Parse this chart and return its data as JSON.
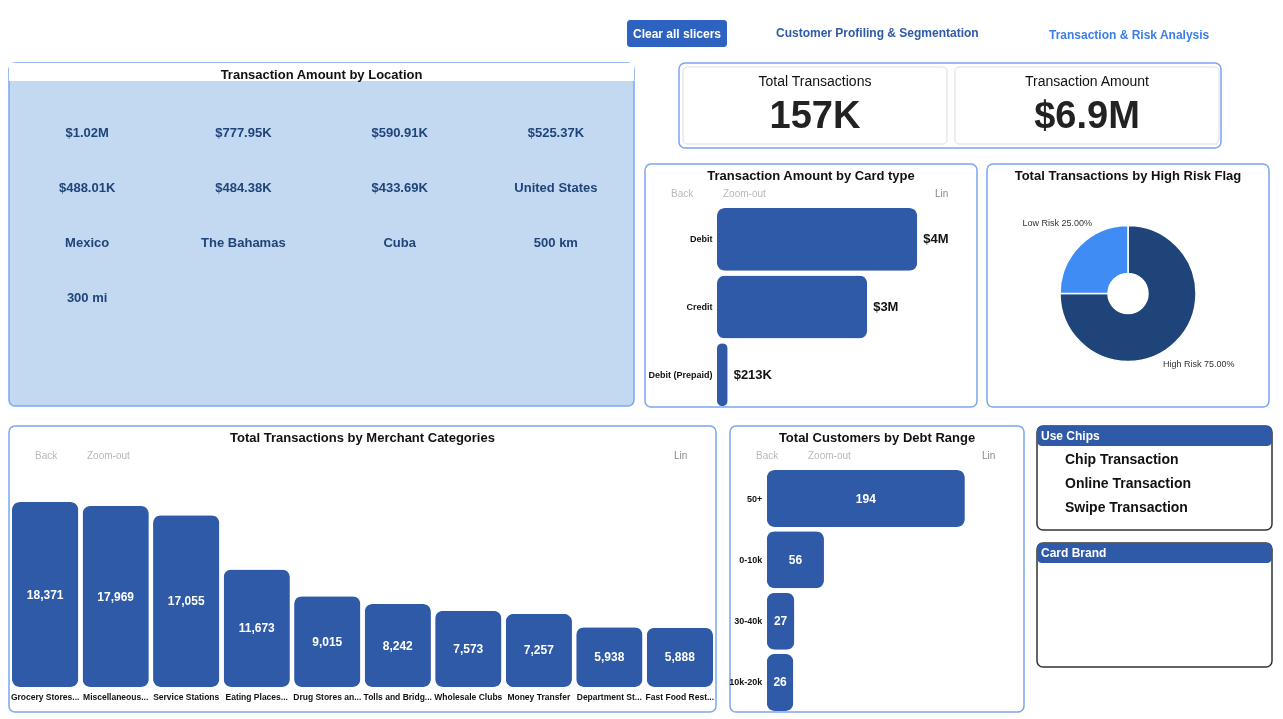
{
  "chart_data": [
    {
      "type": "other",
      "annotations": [
        "Clear all slicers",
        "Customer Profiling & Segmentation",
        "Transaction & Risk Analysis"
      ]
    },
    {
      "type": "other",
      "title": "Transaction Amount by Location",
      "annotations": [
        "$1.02M",
        "$777.95K",
        "$590.91K",
        "$525.37K",
        "$488.01K",
        "$484.38K",
        "$433.69K",
        "United States",
        "Mexico",
        "The Bahamas",
        "Cuba",
        "500 km",
        "300 mi"
      ]
    },
    {
      "type": "other",
      "categories": [
        "Total Transactions",
        "Transaction Amount"
      ],
      "value_labels": [
        "157K",
        "$6.9M"
      ]
    },
    {
      "type": "bar",
      "title": "Transaction Amount by Card type",
      "orientation": "horizontal",
      "categories": [
        "Debit",
        "Credit",
        "Debit (Prepaid)"
      ],
      "values": [
        4000000,
        3000000,
        213000
      ],
      "value_labels": [
        "$4M",
        "$3M",
        "$213K"
      ],
      "color": "#2e5aa8",
      "annotations": [
        "Back",
        "Zoom-out",
        "Lin"
      ]
    },
    {
      "type": "donut",
      "title": "Total Transactions by High Risk Flag",
      "categories": [
        "High Risk",
        "Low Risk"
      ],
      "values": [
        75,
        25
      ],
      "value_labels": [
        "75.00%",
        "25.00%"
      ],
      "colors": [
        "#1e4479",
        "#3f8cf5"
      ]
    },
    {
      "type": "bar",
      "title": "Total Transactions by Merchant Categories",
      "categories": [
        "Grocery Stores...",
        "Miscellaneous...",
        "Service Stations",
        "Eating Places...",
        "Drug Stores an...",
        "Tolls and Bridg...",
        "Wholesale Clubs",
        "Money Transfer",
        "Department St...",
        "Fast Food Rest..."
      ],
      "values": [
        18371,
        17969,
        17055,
        11673,
        9015,
        8242,
        7573,
        7257,
        5938,
        5888
      ],
      "value_labels": [
        "18,371",
        "17,969",
        "17,055",
        "11,673",
        "9,015",
        "8,242",
        "7,573",
        "7,257",
        "5,938",
        "5,888"
      ],
      "color": "#2e5aa8",
      "annotations": [
        "Back",
        "Zoom-out",
        "Lin"
      ]
    },
    {
      "type": "bar",
      "title": "Total Customers by Debt Range",
      "orientation": "horizontal",
      "categories": [
        "50+",
        "0-10k",
        "30-40k",
        "10k-20k"
      ],
      "values": [
        194,
        56,
        27,
        26
      ],
      "data_labels": true,
      "color": "#2e5aa8",
      "annotations": [
        "Back",
        "Zoom-out",
        "Lin"
      ]
    },
    {
      "type": "other",
      "title": "Use Chips",
      "categories": [
        "Chip Transaction",
        "Online Transaction",
        "Swipe Transaction"
      ]
    },
    {
      "type": "other",
      "title": "Card Brand"
    }
  ]
}
